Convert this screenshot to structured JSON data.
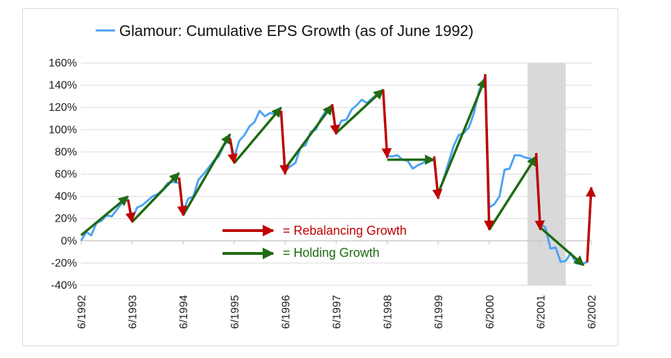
{
  "chart_data": {
    "type": "line",
    "title": "Glamour: Cumulative EPS Growth (as of June 1992)",
    "series_name": "Glamour: Cumulative EPS Growth (as of June 1992)",
    "series_color": "#4da3f5",
    "ylim": [
      -40,
      160
    ],
    "yticks": [
      -40,
      -20,
      0,
      20,
      40,
      60,
      80,
      100,
      120,
      140,
      160
    ],
    "ytick_labels": [
      "-40%",
      "-20%",
      "0%",
      "20%",
      "40%",
      "60%",
      "80%",
      "100%",
      "120%",
      "140%",
      "160%"
    ],
    "xlim": [
      1992.5,
      2002.5
    ],
    "xticks": [
      1992.5,
      1993.5,
      1994.5,
      1995.5,
      1996.5,
      1997.5,
      1998.5,
      1999.5,
      2000.5,
      2001.5,
      2002.5
    ],
    "xtick_labels": [
      "6/1992",
      "6/1993",
      "6/1994",
      "6/1995",
      "6/1996",
      "6/1997",
      "6/1998",
      "6/1999",
      "6/2000",
      "6/2001",
      "6/2002"
    ],
    "shaded_region": {
      "x": [
        2001.25,
        2002.0
      ],
      "color": "#d9d9d9"
    },
    "points": [
      [
        1992.5,
        0
      ],
      [
        1992.6,
        8
      ],
      [
        1992.7,
        5
      ],
      [
        1992.8,
        16
      ],
      [
        1992.9,
        18
      ],
      [
        1993.0,
        23
      ],
      [
        1993.1,
        22
      ],
      [
        1993.2,
        28
      ],
      [
        1993.3,
        34
      ],
      [
        1993.42,
        37
      ],
      [
        1993.5,
        20
      ],
      [
        1993.6,
        30
      ],
      [
        1993.7,
        32
      ],
      [
        1993.8,
        36
      ],
      [
        1993.9,
        40
      ],
      [
        1994.0,
        42
      ],
      [
        1994.1,
        46
      ],
      [
        1994.2,
        52
      ],
      [
        1994.3,
        53
      ],
      [
        1994.42,
        52
      ],
      [
        1994.5,
        27
      ],
      [
        1994.6,
        38
      ],
      [
        1994.7,
        40
      ],
      [
        1994.8,
        55
      ],
      [
        1994.9,
        60
      ],
      [
        1995.0,
        66
      ],
      [
        1995.1,
        72
      ],
      [
        1995.2,
        76
      ],
      [
        1995.3,
        86
      ],
      [
        1995.42,
        92
      ],
      [
        1995.5,
        75
      ],
      [
        1995.6,
        90
      ],
      [
        1995.7,
        95
      ],
      [
        1995.8,
        103
      ],
      [
        1995.9,
        107
      ],
      [
        1996.0,
        117
      ],
      [
        1996.1,
        112
      ],
      [
        1996.2,
        115
      ],
      [
        1996.3,
        114
      ],
      [
        1996.42,
        113
      ],
      [
        1996.5,
        63
      ],
      [
        1996.6,
        67
      ],
      [
        1996.7,
        70
      ],
      [
        1996.8,
        84
      ],
      [
        1996.9,
        86
      ],
      [
        1997.0,
        98
      ],
      [
        1997.1,
        100
      ],
      [
        1997.2,
        110
      ],
      [
        1997.3,
        117
      ],
      [
        1997.42,
        119
      ],
      [
        1997.5,
        98
      ],
      [
        1997.6,
        108
      ],
      [
        1997.7,
        109
      ],
      [
        1997.8,
        118
      ],
      [
        1997.9,
        122
      ],
      [
        1998.0,
        127
      ],
      [
        1998.1,
        124
      ],
      [
        1998.2,
        128
      ],
      [
        1998.3,
        132
      ],
      [
        1998.42,
        133
      ],
      [
        1998.5,
        76
      ],
      [
        1998.6,
        76
      ],
      [
        1998.7,
        77
      ],
      [
        1998.8,
        73
      ],
      [
        1998.9,
        72
      ],
      [
        1999.0,
        65
      ],
      [
        1999.1,
        68
      ],
      [
        1999.2,
        70
      ],
      [
        1999.3,
        73
      ],
      [
        1999.42,
        72
      ],
      [
        1999.5,
        42
      ],
      [
        1999.6,
        55
      ],
      [
        1999.7,
        70
      ],
      [
        1999.8,
        85
      ],
      [
        1999.9,
        95
      ],
      [
        2000.0,
        97
      ],
      [
        2000.1,
        102
      ],
      [
        2000.2,
        115
      ],
      [
        2000.3,
        135
      ],
      [
        2000.42,
        148
      ],
      [
        2000.5,
        30
      ],
      [
        2000.6,
        33
      ],
      [
        2000.7,
        40
      ],
      [
        2000.8,
        64
      ],
      [
        2000.9,
        65
      ],
      [
        2001.0,
        77
      ],
      [
        2001.1,
        77
      ],
      [
        2001.2,
        75
      ],
      [
        2001.3,
        74
      ],
      [
        2001.42,
        70
      ],
      [
        2001.5,
        15
      ],
      [
        2001.6,
        12
      ],
      [
        2001.7,
        -7
      ],
      [
        2001.8,
        -6
      ],
      [
        2001.9,
        -19
      ],
      [
        2002.0,
        -18
      ],
      [
        2002.1,
        -11
      ],
      [
        2002.2,
        -20
      ],
      [
        2002.3,
        -21
      ],
      [
        2002.42,
        -19
      ],
      [
        2002.5,
        45
      ]
    ],
    "holding_arrows": [
      {
        "from": [
          1992.5,
          5
        ],
        "to": [
          1993.42,
          40
        ]
      },
      {
        "from": [
          1993.5,
          17
        ],
        "to": [
          1994.42,
          61
        ]
      },
      {
        "from": [
          1994.5,
          23
        ],
        "to": [
          1995.42,
          96
        ]
      },
      {
        "from": [
          1995.5,
          70
        ],
        "to": [
          1996.42,
          120
        ]
      },
      {
        "from": [
          1996.5,
          65
        ],
        "to": [
          1997.42,
          122
        ]
      },
      {
        "from": [
          1997.5,
          97
        ],
        "to": [
          1998.42,
          136
        ]
      },
      {
        "from": [
          1998.5,
          73
        ],
        "to": [
          1999.42,
          73
        ]
      },
      {
        "from": [
          1999.5,
          43
        ],
        "to": [
          2000.42,
          146
        ]
      },
      {
        "from": [
          2000.5,
          10
        ],
        "to": [
          2001.42,
          76
        ]
      },
      {
        "from": [
          2001.5,
          12
        ],
        "to": [
          2002.35,
          -22
        ]
      }
    ],
    "rebalancing_arrows": [
      {
        "from": [
          1993.42,
          37
        ],
        "to": [
          1993.5,
          17
        ]
      },
      {
        "from": [
          1994.42,
          57
        ],
        "to": [
          1994.5,
          23
        ]
      },
      {
        "from": [
          1995.42,
          92
        ],
        "to": [
          1995.5,
          70
        ]
      },
      {
        "from": [
          1996.42,
          117
        ],
        "to": [
          1996.5,
          60
        ]
      },
      {
        "from": [
          1997.42,
          123
        ],
        "to": [
          1997.5,
          96
        ]
      },
      {
        "from": [
          1998.42,
          136
        ],
        "to": [
          1998.5,
          75
        ]
      },
      {
        "from": [
          1999.42,
          76
        ],
        "to": [
          1999.5,
          38
        ]
      },
      {
        "from": [
          2000.42,
          150
        ],
        "to": [
          2000.5,
          10
        ]
      },
      {
        "from": [
          2001.42,
          79
        ],
        "to": [
          2001.5,
          10
        ]
      },
      {
        "from": [
          2002.42,
          -19
        ],
        "to": [
          2002.5,
          48
        ]
      }
    ],
    "annotations": {
      "rebalancing_label": "= Rebalancing Growth",
      "holding_label": "= Holding Growth",
      "rebalancing_color": "#c00000",
      "holding_color": "#1e6b12"
    },
    "grid": true
  }
}
